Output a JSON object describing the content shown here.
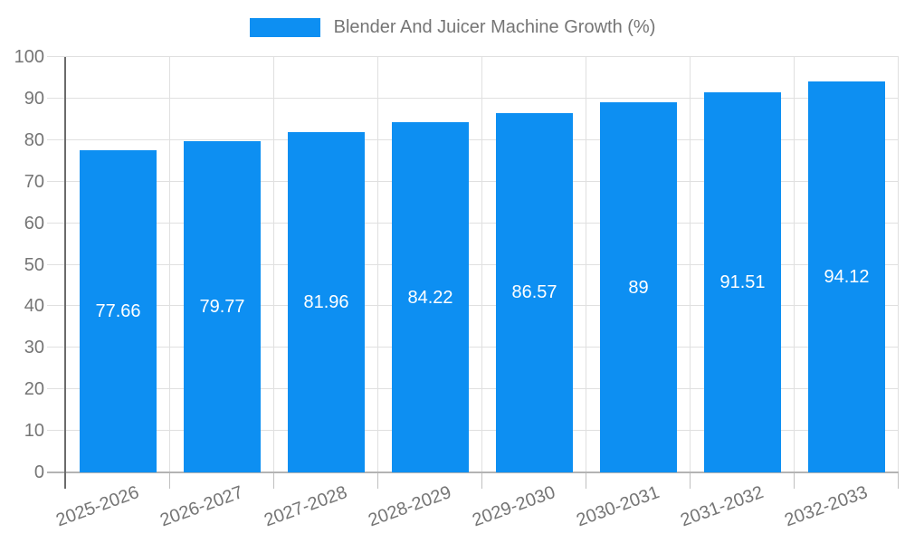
{
  "legend": {
    "label": "Blender And Juicer Machine Growth (%)",
    "swatch_color": "#0d8ff2"
  },
  "chart_data": {
    "type": "bar",
    "title": "Blender And Juicer Machine Growth (%)",
    "categories": [
      "2025-2026",
      "2026-2027",
      "2027-2028",
      "2028-2029",
      "2029-2030",
      "2030-2031",
      "2031-2032",
      "2032-2033"
    ],
    "series": [
      {
        "name": "Blender And Juicer Machine Growth (%)",
        "values": [
          77.66,
          79.77,
          81.96,
          84.22,
          86.57,
          89,
          91.51,
          94.12
        ]
      }
    ],
    "value_labels": [
      "77.66",
      "79.77",
      "81.96",
      "84.22",
      "86.57",
      "89",
      "91.51",
      "94.12"
    ],
    "xlabel": "",
    "ylabel": "",
    "ylim": [
      0,
      100
    ],
    "yticks": [
      0,
      10,
      20,
      30,
      40,
      50,
      60,
      70,
      80,
      90,
      100
    ],
    "grid": true,
    "legend_position": "top",
    "value_label_position": "center-of-bar",
    "x_label_rotation_deg": -20,
    "colors": {
      "bar": "#0d8ff2",
      "grid": "#e0e0e0",
      "y_axis_line": "#6b6b6b",
      "x_axis_line": "#b3b3b3",
      "tick_text": "#757575",
      "value_text": "#ffffff",
      "background": "#ffffff"
    }
  }
}
